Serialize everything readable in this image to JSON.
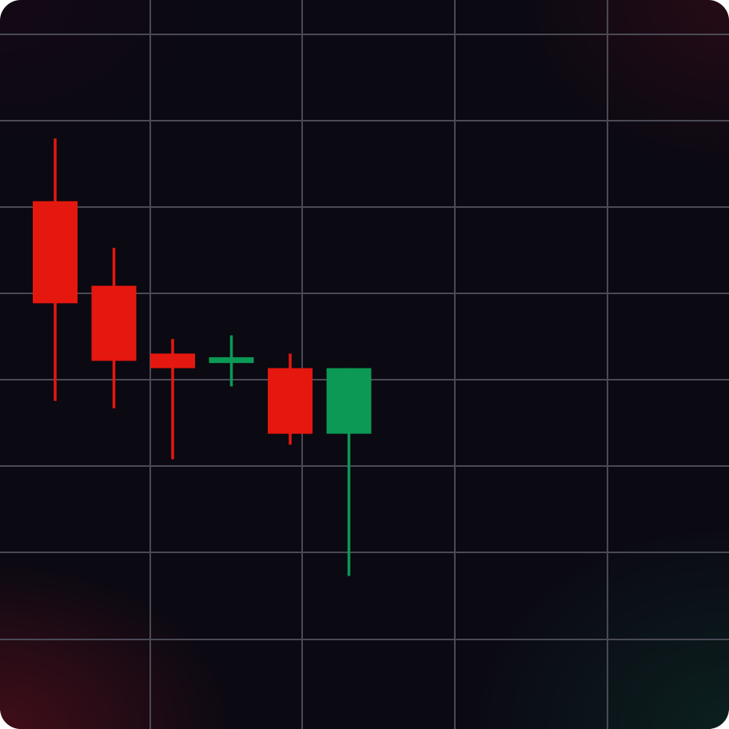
{
  "chart_data": {
    "type": "candlestick",
    "title": "",
    "xlabel": "",
    "ylabel": "",
    "grid": true,
    "legend": "none",
    "ylim": [
      0,
      100
    ],
    "candles": [
      {
        "index": 1,
        "open": 72.4,
        "close": 58.4,
        "high": 81.0,
        "low": 45.0,
        "direction": "down"
      },
      {
        "index": 2,
        "open": 60.8,
        "close": 50.5,
        "high": 66.0,
        "low": 44.0,
        "direction": "down"
      },
      {
        "index": 3,
        "open": 51.5,
        "close": 49.5,
        "high": 53.5,
        "low": 37.0,
        "direction": "down"
      },
      {
        "index": 4,
        "open": 50.2,
        "close": 51.0,
        "high": 54.0,
        "low": 47.0,
        "direction": "up"
      },
      {
        "index": 5,
        "open": 49.5,
        "close": 40.5,
        "high": 51.5,
        "low": 39.0,
        "direction": "down"
      },
      {
        "index": 6,
        "open": 40.5,
        "close": 49.5,
        "high": 49.5,
        "low": 21.0,
        "direction": "up"
      }
    ],
    "colors": {
      "up": "#0c9955",
      "down": "#e5180f",
      "grid": "#4a4a56",
      "background": "#0b0912"
    }
  }
}
